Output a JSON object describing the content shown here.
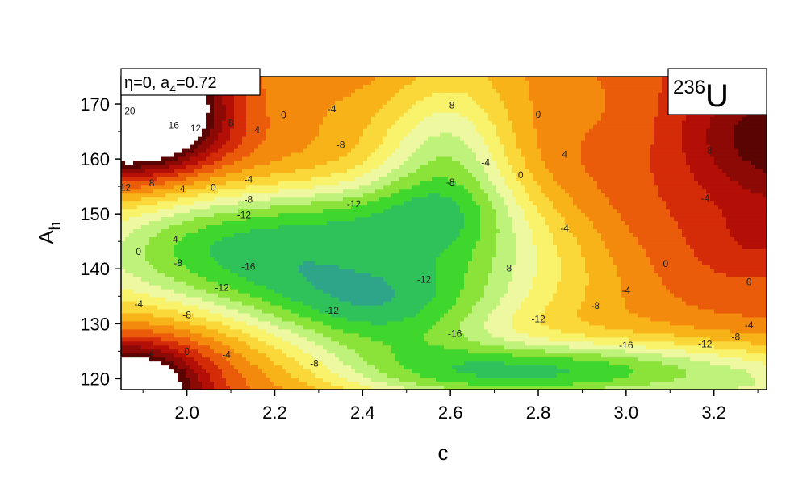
{
  "chart_data": {
    "type": "heatmap",
    "subtype": "filled contour map",
    "nucleus_mass": "236",
    "nucleus_symbol": "U",
    "params_text": "η=0, a",
    "params_sub": "4",
    "params_value": "=0.72",
    "xlabel": "c",
    "ylabel": "A",
    "ylabel_sub": "h",
    "xlim": [
      1.85,
      3.32
    ],
    "ylim": [
      118,
      175
    ],
    "x_ticks": [
      2.0,
      2.2,
      2.4,
      2.6,
      2.8,
      3.0,
      3.2
    ],
    "x_tick_labels": [
      "2.0",
      "2.2",
      "2.4",
      "2.6",
      "2.8",
      "3.0",
      "3.2"
    ],
    "y_ticks": [
      120,
      130,
      140,
      150,
      160,
      170
    ],
    "y_tick_labels": [
      "120",
      "130",
      "140",
      "150",
      "160",
      "170"
    ],
    "contour_levels": [
      -18,
      -16,
      -14,
      -12,
      -10,
      -8,
      -6,
      -4,
      -2,
      0,
      2,
      4,
      6,
      8,
      10,
      12,
      14,
      16,
      18,
      20,
      22
    ],
    "level_colors": [
      "#b7eded",
      "#a3d6d2",
      "#6cbab8",
      "#2ea489",
      "#30c25a",
      "#3fd72d",
      "#8be33a",
      "#bff27b",
      "#eef8a0",
      "#f8f36a",
      "#fad83a",
      "#f8b318",
      "#f48a0d",
      "#ea5b0a",
      "#d42b08",
      "#b30f06",
      "#8c0905",
      "#5a0503",
      "#ffffff"
    ],
    "grid": false,
    "legend": "none",
    "contour_labels": [
      {
        "x": 1.87,
        "y": 168.2,
        "text": "20"
      },
      {
        "x": 1.97,
        "y": 165.5,
        "text": "16"
      },
      {
        "x": 2.02,
        "y": 165.0,
        "text": "12"
      },
      {
        "x": 2.1,
        "y": 166.0,
        "text": "8"
      },
      {
        "x": 2.16,
        "y": 164.7,
        "text": "4"
      },
      {
        "x": 2.22,
        "y": 167.4,
        "text": "0"
      },
      {
        "x": 2.33,
        "y": 168.5,
        "text": "-4"
      },
      {
        "x": 2.6,
        "y": 169.2,
        "text": "-8"
      },
      {
        "x": 2.35,
        "y": 162.0,
        "text": "-8"
      },
      {
        "x": 1.86,
        "y": 154.2,
        "text": "12"
      },
      {
        "x": 1.92,
        "y": 155.0,
        "text": "8"
      },
      {
        "x": 1.99,
        "y": 154.0,
        "text": "4"
      },
      {
        "x": 2.06,
        "y": 154.2,
        "text": "0"
      },
      {
        "x": 2.14,
        "y": 155.7,
        "text": "-4"
      },
      {
        "x": 2.14,
        "y": 152.0,
        "text": "-8"
      },
      {
        "x": 2.13,
        "y": 149.2,
        "text": "-12"
      },
      {
        "x": 2.38,
        "y": 151.2,
        "text": "-12"
      },
      {
        "x": 2.6,
        "y": 155.2,
        "text": "-8"
      },
      {
        "x": 1.89,
        "y": 142.5,
        "text": "0"
      },
      {
        "x": 1.97,
        "y": 144.8,
        "text": "-4"
      },
      {
        "x": 1.98,
        "y": 140.5,
        "text": "-8"
      },
      {
        "x": 2.14,
        "y": 139.8,
        "text": "-16"
      },
      {
        "x": 2.08,
        "y": 136.0,
        "text": "-12"
      },
      {
        "x": 2.54,
        "y": 137.5,
        "text": "-12"
      },
      {
        "x": 2.68,
        "y": 158.8,
        "text": "-4"
      },
      {
        "x": 2.76,
        "y": 156.5,
        "text": "0"
      },
      {
        "x": 2.86,
        "y": 160.2,
        "text": "4"
      },
      {
        "x": 2.8,
        "y": 167.5,
        "text": "0"
      },
      {
        "x": 2.86,
        "y": 146.8,
        "text": "-4"
      },
      {
        "x": 2.73,
        "y": 139.5,
        "text": "-8"
      },
      {
        "x": 3.09,
        "y": 140.3,
        "text": "0"
      },
      {
        "x": 3.18,
        "y": 152.2,
        "text": "-4"
      },
      {
        "x": 3.19,
        "y": 161.0,
        "text": "8"
      },
      {
        "x": 3.28,
        "y": 137.0,
        "text": "0"
      },
      {
        "x": 3.0,
        "y": 135.5,
        "text": "-4"
      },
      {
        "x": 2.93,
        "y": 132.7,
        "text": "-8"
      },
      {
        "x": 2.8,
        "y": 130.3,
        "text": "-12"
      },
      {
        "x": 3.28,
        "y": 129.2,
        "text": "-4"
      },
      {
        "x": 3.25,
        "y": 127.0,
        "text": "-8"
      },
      {
        "x": 3.18,
        "y": 125.7,
        "text": "-12"
      },
      {
        "x": 3.0,
        "y": 125.5,
        "text": "-16"
      },
      {
        "x": 2.61,
        "y": 127.6,
        "text": "-16"
      },
      {
        "x": 2.33,
        "y": 131.8,
        "text": "-12"
      },
      {
        "x": 1.89,
        "y": 133.0,
        "text": "-4"
      },
      {
        "x": 2.0,
        "y": 131.0,
        "text": "-8"
      },
      {
        "x": 1.92,
        "y": 124.0,
        "text": "4"
      },
      {
        "x": 2.0,
        "y": 124.3,
        "text": "0"
      },
      {
        "x": 2.09,
        "y": 123.8,
        "text": "-4"
      },
      {
        "x": 2.29,
        "y": 122.2,
        "text": "-8"
      }
    ]
  }
}
